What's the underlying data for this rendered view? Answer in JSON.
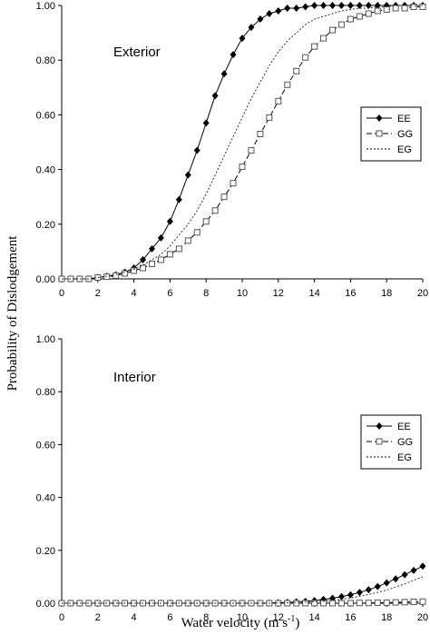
{
  "figure": {
    "ylabel": "Probability of Dislodgement",
    "xlabel_main": "Water velocity (m s",
    "xlabel_sup": "-1",
    "xlabel_close": ")"
  },
  "chart_data": [
    {
      "type": "line",
      "annotation": "Exterior",
      "x": [
        0,
        0.5,
        1,
        1.5,
        2,
        2.5,
        3,
        3.5,
        4,
        4.5,
        5,
        5.5,
        6,
        6.5,
        7,
        7.5,
        8,
        8.5,
        9,
        9.5,
        10,
        10.5,
        11,
        11.5,
        12,
        12.5,
        13,
        13.5,
        14,
        14.5,
        15,
        15.5,
        16,
        16.5,
        17,
        17.5,
        18,
        18.5,
        19,
        19.5,
        20
      ],
      "series": [
        {
          "name": "EE",
          "marker": "diamond",
          "dash": "solid",
          "values": [
            0.0,
            0.0,
            0.0,
            0.0,
            0.005,
            0.01,
            0.015,
            0.025,
            0.04,
            0.07,
            0.11,
            0.15,
            0.21,
            0.29,
            0.38,
            0.47,
            0.57,
            0.67,
            0.75,
            0.82,
            0.88,
            0.92,
            0.95,
            0.97,
            0.98,
            0.99,
            0.99,
            0.995,
            1.0,
            1.0,
            1.0,
            1.0,
            1.0,
            1.0,
            1.0,
            1.0,
            1.0,
            1.0,
            1.0,
            1.0,
            1.0
          ]
        },
        {
          "name": "GG",
          "marker": "square",
          "dash": "dashed",
          "values": [
            0.0,
            0.0,
            0.0,
            0.0,
            0.005,
            0.008,
            0.012,
            0.02,
            0.03,
            0.04,
            0.055,
            0.07,
            0.09,
            0.11,
            0.14,
            0.17,
            0.21,
            0.25,
            0.3,
            0.35,
            0.41,
            0.47,
            0.53,
            0.59,
            0.65,
            0.71,
            0.76,
            0.81,
            0.85,
            0.88,
            0.91,
            0.93,
            0.95,
            0.96,
            0.97,
            0.98,
            0.985,
            0.99,
            0.99,
            0.995,
            0.995
          ]
        },
        {
          "name": "EG",
          "marker": "none",
          "dash": "dotted",
          "values": [
            0.0,
            0.0,
            0.0,
            0.0,
            0.005,
            0.01,
            0.015,
            0.025,
            0.035,
            0.05,
            0.07,
            0.09,
            0.12,
            0.16,
            0.2,
            0.25,
            0.31,
            0.38,
            0.45,
            0.52,
            0.59,
            0.66,
            0.72,
            0.78,
            0.83,
            0.87,
            0.9,
            0.93,
            0.95,
            0.96,
            0.97,
            0.98,
            0.985,
            0.99,
            0.99,
            0.995,
            0.995,
            1.0,
            1.0,
            1.0,
            1.0
          ]
        }
      ],
      "xlim": [
        0,
        20
      ],
      "ylim": [
        0,
        1
      ],
      "xticks": [
        "0",
        "2",
        "4",
        "6",
        "8",
        "10",
        "12",
        "14",
        "16",
        "18",
        "20"
      ],
      "yticks": [
        "0.00",
        "0.20",
        "0.40",
        "0.60",
        "0.80",
        "1.00"
      ],
      "legend": "right",
      "grid": false
    },
    {
      "type": "line",
      "annotation": "Interior",
      "x": [
        0,
        0.5,
        1,
        1.5,
        2,
        2.5,
        3,
        3.5,
        4,
        4.5,
        5,
        5.5,
        6,
        6.5,
        7,
        7.5,
        8,
        8.5,
        9,
        9.5,
        10,
        10.5,
        11,
        11.5,
        12,
        12.5,
        13,
        13.5,
        14,
        14.5,
        15,
        15.5,
        16,
        16.5,
        17,
        17.5,
        18,
        18.5,
        19,
        19.5,
        20
      ],
      "series": [
        {
          "name": "EE",
          "marker": "diamond",
          "dash": "solid",
          "values": [
            0,
            0,
            0,
            0,
            0,
            0,
            0,
            0,
            0,
            0,
            0,
            0,
            0,
            0,
            0,
            0,
            0,
            0,
            0,
            0,
            0.0,
            0.0,
            0.0,
            0.001,
            0.002,
            0.003,
            0.005,
            0.007,
            0.01,
            0.014,
            0.019,
            0.025,
            0.032,
            0.041,
            0.051,
            0.063,
            0.077,
            0.092,
            0.108,
            0.124,
            0.14
          ]
        },
        {
          "name": "GG",
          "marker": "square",
          "dash": "dashed",
          "values": [
            0,
            0,
            0,
            0,
            0,
            0,
            0,
            0,
            0,
            0,
            0,
            0,
            0,
            0,
            0,
            0,
            0,
            0,
            0,
            0,
            0,
            0,
            0,
            0,
            0,
            0,
            0,
            0,
            0,
            0,
            0,
            0,
            0,
            0.001,
            0.001,
            0.002,
            0.002,
            0.003,
            0.004,
            0.005,
            0.006
          ]
        },
        {
          "name": "EG",
          "marker": "none",
          "dash": "dotted",
          "values": [
            0,
            0,
            0,
            0,
            0,
            0,
            0,
            0,
            0,
            0,
            0,
            0,
            0,
            0,
            0,
            0,
            0,
            0,
            0,
            0,
            0.0,
            0.0,
            0.0,
            0.0,
            0.001,
            0.002,
            0.003,
            0.004,
            0.006,
            0.008,
            0.011,
            0.015,
            0.02,
            0.026,
            0.033,
            0.041,
            0.05,
            0.061,
            0.073,
            0.087,
            0.1
          ]
        }
      ],
      "xlim": [
        0,
        20
      ],
      "ylim": [
        0,
        1
      ],
      "xticks": [
        "0",
        "2",
        "4",
        "6",
        "8",
        "10",
        "12",
        "14",
        "16",
        "18",
        "20"
      ],
      "yticks": [
        "0.00",
        "0.20",
        "0.40",
        "0.60",
        "0.80",
        "1.00"
      ],
      "legend": "right",
      "grid": false
    }
  ]
}
